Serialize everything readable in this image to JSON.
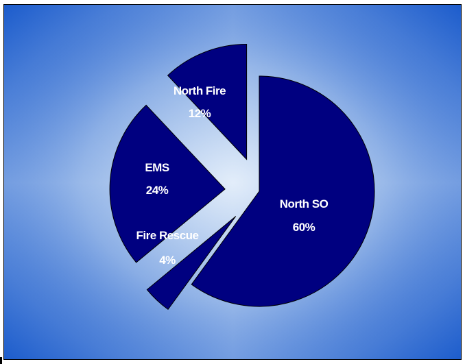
{
  "chart_data": {
    "type": "pie",
    "exploded": true,
    "slices": [
      {
        "name": "North SO",
        "percent_label": "60%",
        "value": 60,
        "color": "#000080"
      },
      {
        "name": "Fire Rescue",
        "percent_label": "4%",
        "value": 4,
        "color": "#000080"
      },
      {
        "name": "EMS",
        "percent_label": "24%",
        "value": 24,
        "color": "#000080"
      },
      {
        "name": "North Fire",
        "percent_label": "12%",
        "value": 12,
        "color": "#000080"
      }
    ],
    "slice_border_color": "#000000",
    "background": {
      "style": "radial-gradient",
      "center_color": "#d6e6f8",
      "edge_color": "#1c5ccc"
    },
    "label_color": "#ffffff"
  }
}
